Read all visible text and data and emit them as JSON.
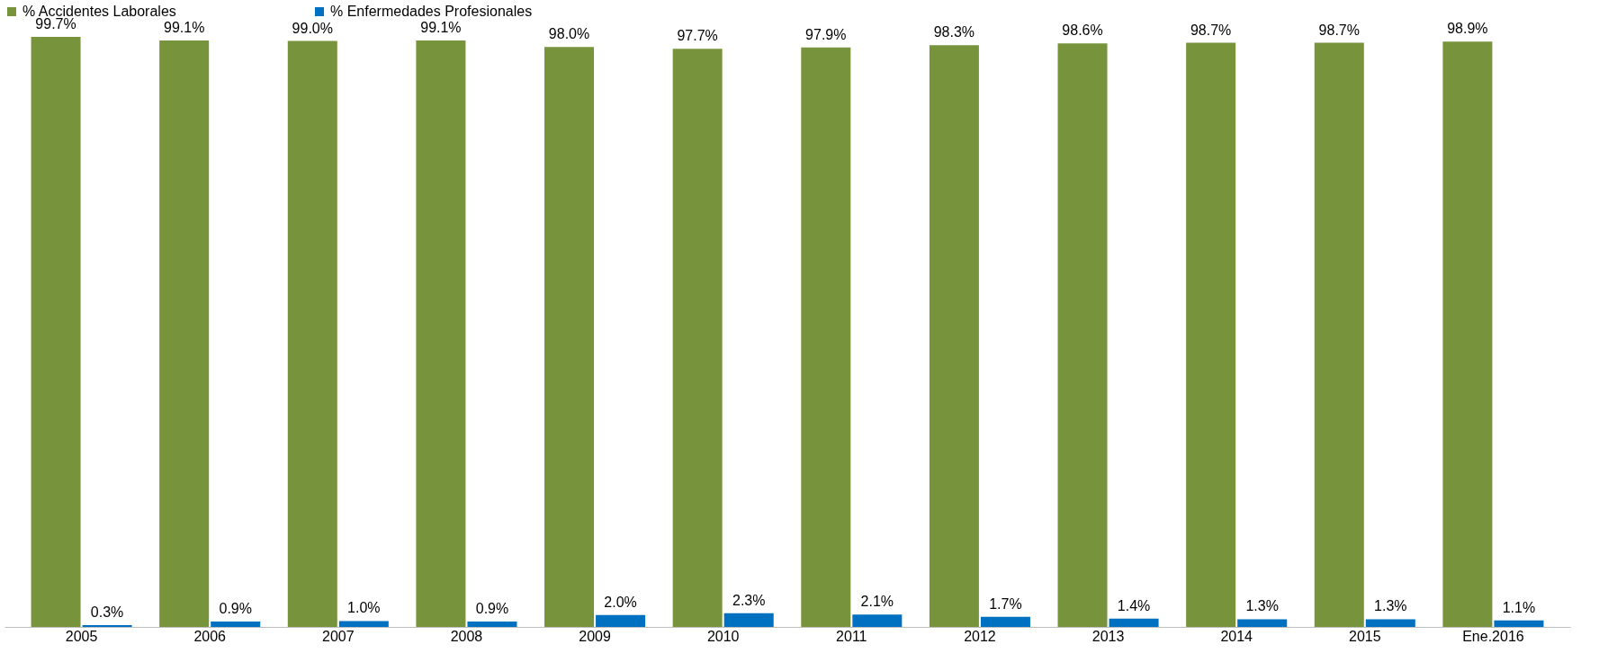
{
  "chart_data": {
    "type": "bar",
    "categories": [
      "2005",
      "2006",
      "2007",
      "2008",
      "2009",
      "2010",
      "2011",
      "2012",
      "2013",
      "2014",
      "2015",
      "Ene.2016"
    ],
    "series": [
      {
        "name": "% Accidentes Laborales",
        "color": "#77933c",
        "values": [
          99.7,
          99.1,
          99.0,
          99.1,
          98.0,
          97.7,
          97.9,
          98.3,
          98.6,
          98.7,
          98.7,
          98.9
        ],
        "value_labels": [
          "99.7%",
          "99.1%",
          "99.0%",
          "99.1%",
          "98.0%",
          "97.7%",
          "97.9%",
          "98.3%",
          "98.6%",
          "98.7%",
          "98.7%",
          "98.9%"
        ]
      },
      {
        "name": "% Enfermedades Profesionales",
        "color": "#0070c0",
        "values": [
          0.3,
          0.9,
          1.0,
          0.9,
          2.0,
          2.3,
          2.1,
          1.7,
          1.4,
          1.3,
          1.3,
          1.1
        ],
        "value_labels": [
          "0.3%",
          "0.9%",
          "1.0%",
          "0.9%",
          "2.0%",
          "2.3%",
          "2.1%",
          "1.7%",
          "1.4%",
          "1.3%",
          "1.3%",
          "1.1%"
        ]
      }
    ],
    "legend": "top",
    "grid": false
  }
}
